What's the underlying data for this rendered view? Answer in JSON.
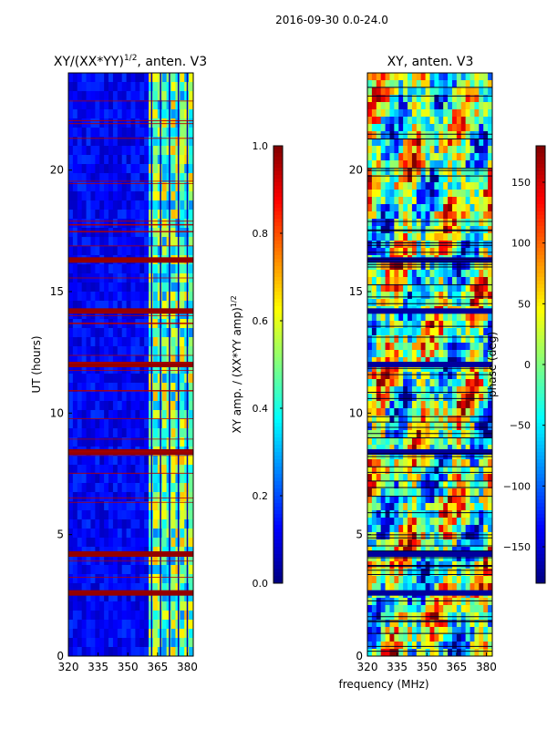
{
  "chart_data": [
    {
      "type": "heatmap",
      "suptitle": "2016-09-30 0.0-24.0",
      "title": "XY/(XX*YY)",
      "title_sup": "1/2",
      "title_suffix": ", anten. V3",
      "xlabel": "",
      "ylabel": "UT (hours)",
      "xlim": [
        320,
        383
      ],
      "ylim": [
        0,
        24
      ],
      "xticks": [
        "320",
        "335",
        "350",
        "365",
        "380"
      ],
      "xtick_values": [
        320,
        335,
        350,
        365,
        380
      ],
      "yticks": [
        "0",
        "5",
        "10",
        "15",
        "20"
      ],
      "ytick_values": [
        0,
        5,
        10,
        15,
        20
      ],
      "colorbar": {
        "label": "XY amp. / (XX*YY amp)",
        "label_sup": "1/2",
        "range": [
          0.0,
          1.0
        ],
        "ticks": [
          "0.0",
          "0.2",
          "0.4",
          "0.6",
          "0.8",
          "1.0"
        ],
        "tick_values": [
          0.0,
          0.2,
          0.4,
          0.6,
          0.8,
          1.0
        ]
      },
      "colormap": "jet",
      "bright_band_mhz": [
        360,
        382
      ],
      "flagged_rows_hours": [
        2.6,
        4.2,
        8.4,
        12.0,
        14.2,
        16.3
      ]
    },
    {
      "type": "heatmap",
      "title": "XY, anten. V3",
      "xlabel": "frequency (MHz)",
      "ylabel": "",
      "xlim": [
        320,
        383
      ],
      "ylim": [
        0,
        24
      ],
      "xticks": [
        "320",
        "335",
        "350",
        "365",
        "380"
      ],
      "xtick_values": [
        320,
        335,
        350,
        365,
        380
      ],
      "yticks": [
        "0",
        "5",
        "10",
        "15",
        "20"
      ],
      "ytick_values": [
        0,
        5,
        10,
        15,
        20
      ],
      "colorbar": {
        "label": "phase (deg)",
        "range": [
          -180,
          180
        ],
        "ticks": [
          "−150",
          "−100",
          "−50",
          "0",
          "50",
          "100",
          "150"
        ],
        "tick_values": [
          -150,
          -100,
          -50,
          0,
          50,
          100,
          150
        ]
      },
      "colormap": "jet"
    }
  ]
}
